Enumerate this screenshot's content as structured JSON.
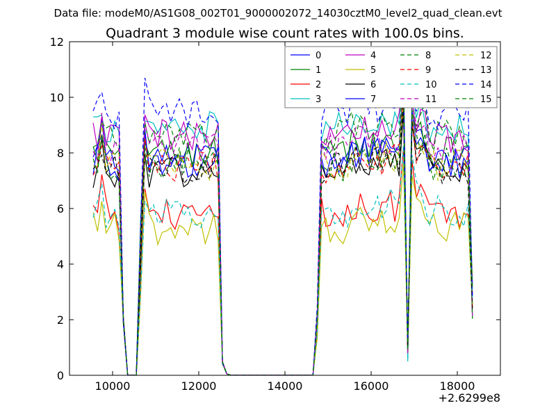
{
  "chart_data": {
    "type": "line",
    "suptitle": "Data file: modeM0/AS1G08_002T01_9000002072_14030cztM0_level2_quad_clean.evt",
    "title": "Quadrant 3 module wise count rates with 100.0s bins.",
    "xlabel": "",
    "ylabel": "",
    "xlim": [
      9000,
      19000
    ],
    "ylim": [
      0,
      12
    ],
    "x_ticks": [
      10000,
      12000,
      14000,
      16000,
      18000
    ],
    "y_ticks": [
      0,
      2,
      4,
      6,
      8,
      10,
      12
    ],
    "x_offset_label": "+2.6299e8",
    "legend_position": "top-right",
    "legend_columns": 4,
    "x_sampling": {
      "start": 9550,
      "step": 100,
      "count": 89
    },
    "series": [
      {
        "name": "0",
        "color": "#0000ff",
        "dash": "solid",
        "level": 7.7,
        "amp": 0.3,
        "peak_top": 10.4,
        "peak_bottom": 0.6
      },
      {
        "name": "1",
        "color": "#008000",
        "dash": "solid",
        "level": 8.0,
        "amp": 0.3,
        "peak_top": 10.4,
        "peak_bottom": 0.7
      },
      {
        "name": "2",
        "color": "#ff0000",
        "dash": "solid",
        "level": 5.8,
        "amp": 0.3,
        "peak_top": 8.6,
        "peak_bottom": 0.8
      },
      {
        "name": "3",
        "color": "#00bfbf",
        "dash": "solid",
        "level": 8.9,
        "amp": 0.3,
        "peak_top": 11.5,
        "peak_bottom": 0.5
      },
      {
        "name": "4",
        "color": "#bf00bf",
        "dash": "solid",
        "level": 8.6,
        "amp": 0.3,
        "peak_top": 11.0,
        "peak_bottom": 0.8
      },
      {
        "name": "5",
        "color": "#bfbf00",
        "dash": "solid",
        "level": 5.3,
        "amp": 0.3,
        "peak_top": 8.0,
        "peak_bottom": 0.9
      },
      {
        "name": "6",
        "color": "#000000",
        "dash": "solid",
        "level": 7.3,
        "amp": 0.3,
        "peak_top": 10.0,
        "peak_bottom": 1.0
      },
      {
        "name": "7",
        "color": "#0000ff",
        "dash": "solid",
        "level": 7.7,
        "amp": 0.3,
        "peak_top": 10.6,
        "peak_bottom": 0.9
      },
      {
        "name": "8",
        "color": "#008000",
        "dash": "dashed",
        "level": 8.6,
        "amp": 0.3,
        "peak_top": 11.0,
        "peak_bottom": 0.8
      },
      {
        "name": "9",
        "color": "#ff0000",
        "dash": "dashed",
        "level": 7.5,
        "amp": 0.3,
        "peak_top": 10.2,
        "peak_bottom": 0.9
      },
      {
        "name": "10",
        "color": "#00bfbf",
        "dash": "dashed",
        "level": 5.9,
        "amp": 0.3,
        "peak_top": 8.8,
        "peak_bottom": 1.0
      },
      {
        "name": "11",
        "color": "#bf00bf",
        "dash": "dashed",
        "level": 8.2,
        "amp": 0.3,
        "peak_top": 10.8,
        "peak_bottom": 0.8
      },
      {
        "name": "12",
        "color": "#bfbf00",
        "dash": "dashed",
        "level": 7.6,
        "amp": 0.3,
        "peak_top": 10.4,
        "peak_bottom": 1.0
      },
      {
        "name": "13",
        "color": "#000000",
        "dash": "dashed",
        "level": 7.4,
        "amp": 0.3,
        "peak_top": 10.2,
        "peak_bottom": 1.0
      },
      {
        "name": "14",
        "color": "#0000ff",
        "dash": "dashed",
        "level": 9.4,
        "amp": 0.3,
        "peak_top": 10.8,
        "peak_bottom": 1.2
      },
      {
        "name": "15",
        "color": "#008000",
        "dash": "dashed",
        "level": 7.6,
        "amp": 0.3,
        "peak_top": 10.6,
        "peak_bottom": 0.9
      }
    ]
  }
}
